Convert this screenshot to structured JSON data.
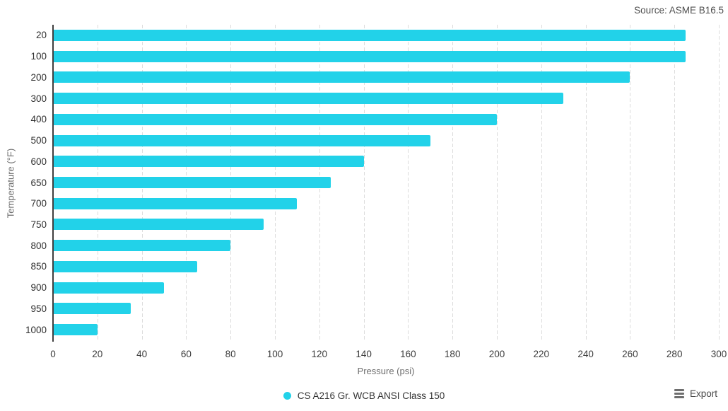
{
  "source": {
    "label": "Source: ASME B16.5"
  },
  "legend": {
    "label": "CS A216 Gr. WCB ANSI Class 150"
  },
  "export": {
    "label": "Export",
    "icon": "hamburger-icon"
  },
  "colors": {
    "bar": "#22d2e9",
    "axis_line": "#3f3f3f",
    "gridline": "#dcdcdc",
    "tick_label": "#2e2e2e",
    "axis_title": "#6d6d6d",
    "source_text": "#4f4f4f"
  },
  "chart_data": {
    "type": "bar",
    "orientation": "horizontal",
    "title": "",
    "categories": [
      "20",
      "100",
      "200",
      "300",
      "400",
      "500",
      "600",
      "650",
      "700",
      "750",
      "800",
      "850",
      "900",
      "950",
      "1000"
    ],
    "series": [
      {
        "name": "CS A216 Gr. WCB ANSI Class 150",
        "values": [
          285,
          285,
          260,
          230,
          200,
          170,
          140,
          125,
          110,
          95,
          80,
          65,
          50,
          35,
          20
        ],
        "color": "#22d2e9"
      }
    ],
    "xlabel": "Pressure (psi)",
    "ylabel": "Temperature (°F)",
    "xlim": [
      0,
      300
    ],
    "x_ticks": [
      0,
      20,
      40,
      60,
      80,
      100,
      120,
      140,
      160,
      180,
      200,
      220,
      240,
      260,
      280,
      300
    ],
    "grid": "vertical-dashed",
    "legend_position": "bottom-center",
    "annotation": "Source: ASME B16.5"
  }
}
